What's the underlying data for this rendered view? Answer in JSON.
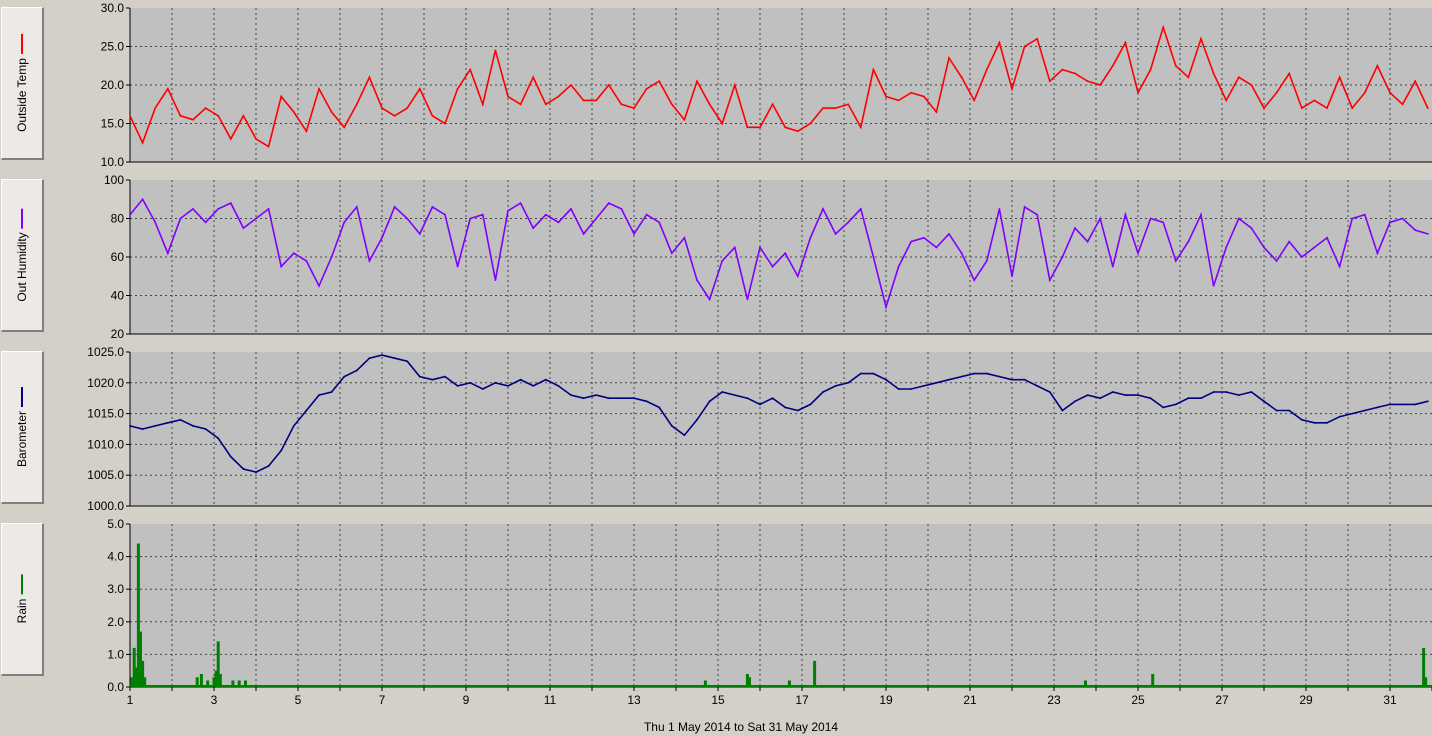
{
  "caption": "Thu 1 May 2014  to  Sat 31 May 2014",
  "x_ticks": [
    "1",
    "3",
    "5",
    "7",
    "9",
    "11",
    "13",
    "15",
    "17",
    "19",
    "21",
    "23",
    "25",
    "27",
    "29",
    "31"
  ],
  "panels": [
    {
      "label": "Outside Temp",
      "color": "#ff0000"
    },
    {
      "label": "Out Humidity",
      "color": "#8000ff"
    },
    {
      "label": "Barometer",
      "color": "#000080"
    },
    {
      "label": "Rain",
      "color": "#008000"
    }
  ],
  "chart_data": [
    {
      "type": "line",
      "ylabel": "Outside Temp",
      "ylim": [
        10,
        30
      ],
      "y_ticks": [
        "30.0",
        "25.0",
        "20.0",
        "15.0",
        "10.0"
      ],
      "color": "#ff0000",
      "x": [
        1.0,
        1.3,
        1.6,
        1.9,
        2.2,
        2.5,
        2.8,
        3.1,
        3.4,
        3.7,
        4.0,
        4.3,
        4.6,
        4.9,
        5.2,
        5.5,
        5.8,
        6.1,
        6.4,
        6.7,
        7.0,
        7.3,
        7.6,
        7.9,
        8.2,
        8.5,
        8.8,
        9.1,
        9.4,
        9.7,
        10.0,
        10.3,
        10.6,
        10.9,
        11.2,
        11.5,
        11.8,
        12.1,
        12.4,
        12.7,
        13.0,
        13.3,
        13.6,
        13.9,
        14.2,
        14.5,
        14.8,
        15.1,
        15.4,
        15.7,
        16.0,
        16.3,
        16.6,
        16.9,
        17.2,
        17.5,
        17.8,
        18.1,
        18.4,
        18.7,
        19.0,
        19.3,
        19.6,
        19.9,
        20.2,
        20.5,
        20.8,
        21.1,
        21.4,
        21.7,
        22.0,
        22.3,
        22.6,
        22.9,
        23.2,
        23.5,
        23.8,
        24.1,
        24.4,
        24.7,
        25.0,
        25.3,
        25.6,
        25.9,
        26.2,
        26.5,
        26.8,
        27.1,
        27.4,
        27.7,
        28.0,
        28.3,
        28.6,
        28.9,
        29.2,
        29.5,
        29.8,
        30.1,
        30.4,
        30.7,
        31.0,
        31.3,
        31.6,
        31.9
      ],
      "y": [
        16.0,
        12.5,
        17.0,
        19.5,
        16.0,
        15.5,
        17.0,
        16.0,
        13.0,
        16.0,
        13.0,
        12.0,
        18.5,
        16.5,
        14.0,
        19.5,
        16.5,
        14.5,
        17.5,
        21.0,
        17.0,
        16.0,
        17.0,
        19.5,
        16.0,
        15.0,
        19.5,
        22.0,
        17.5,
        24.5,
        18.5,
        17.5,
        21.0,
        17.5,
        18.5,
        20.0,
        18.0,
        18.0,
        20.0,
        17.5,
        17.0,
        19.5,
        20.5,
        17.5,
        15.5,
        20.5,
        17.5,
        15.0,
        20.0,
        14.5,
        14.5,
        17.5,
        14.5,
        14.0,
        15.0,
        17.0,
        17.0,
        17.5,
        14.5,
        22.0,
        18.5,
        18.0,
        19.0,
        18.5,
        16.5,
        23.5,
        21.0,
        18.0,
        22.0,
        25.5,
        19.5,
        25.0,
        26.0,
        20.5,
        22.0,
        21.5,
        20.5,
        20.0,
        22.5,
        25.5,
        19.0,
        22.0,
        27.5,
        22.5,
        21.0,
        26.0,
        21.5,
        18.0,
        21.0,
        20.0,
        17.0,
        19.0,
        21.5,
        17.0,
        18.0,
        17.0,
        21.0,
        17.0,
        19.0,
        22.5,
        19.0,
        17.5,
        20.5,
        17.0
      ]
    },
    {
      "type": "line",
      "ylabel": "Out Humidity",
      "ylim": [
        20,
        100
      ],
      "y_ticks": [
        "100",
        "80",
        "60",
        "40",
        "20"
      ],
      "color": "#8000ff",
      "x": [
        1.0,
        1.3,
        1.6,
        1.9,
        2.2,
        2.5,
        2.8,
        3.1,
        3.4,
        3.7,
        4.0,
        4.3,
        4.6,
        4.9,
        5.2,
        5.5,
        5.8,
        6.1,
        6.4,
        6.7,
        7.0,
        7.3,
        7.6,
        7.9,
        8.2,
        8.5,
        8.8,
        9.1,
        9.4,
        9.7,
        10.0,
        10.3,
        10.6,
        10.9,
        11.2,
        11.5,
        11.8,
        12.1,
        12.4,
        12.7,
        13.0,
        13.3,
        13.6,
        13.9,
        14.2,
        14.5,
        14.8,
        15.1,
        15.4,
        15.7,
        16.0,
        16.3,
        16.6,
        16.9,
        17.2,
        17.5,
        17.8,
        18.1,
        18.4,
        18.7,
        19.0,
        19.3,
        19.6,
        19.9,
        20.2,
        20.5,
        20.8,
        21.1,
        21.4,
        21.7,
        22.0,
        22.3,
        22.6,
        22.9,
        23.2,
        23.5,
        23.8,
        24.1,
        24.4,
        24.7,
        25.0,
        25.3,
        25.6,
        25.9,
        26.2,
        26.5,
        26.8,
        27.1,
        27.4,
        27.7,
        28.0,
        28.3,
        28.6,
        28.9,
        29.2,
        29.5,
        29.8,
        30.1,
        30.4,
        30.7,
        31.0,
        31.3,
        31.6,
        31.9
      ],
      "y": [
        82,
        90,
        78,
        62,
        80,
        85,
        78,
        85,
        88,
        75,
        80,
        85,
        55,
        62,
        58,
        45,
        60,
        78,
        86,
        58,
        70,
        86,
        80,
        72,
        86,
        82,
        55,
        80,
        82,
        48,
        84,
        88,
        75,
        82,
        78,
        85,
        72,
        80,
        88,
        85,
        72,
        82,
        78,
        62,
        70,
        48,
        38,
        58,
        65,
        38,
        65,
        55,
        62,
        50,
        70,
        85,
        72,
        78,
        85,
        60,
        34,
        55,
        68,
        70,
        65,
        72,
        62,
        48,
        58,
        85,
        50,
        86,
        82,
        48,
        60,
        75,
        68,
        80,
        55,
        82,
        62,
        80,
        78,
        58,
        68,
        82,
        45,
        65,
        80,
        75,
        65,
        58,
        68,
        60,
        65,
        70,
        55,
        80,
        82,
        62,
        78,
        80,
        74,
        72
      ]
    },
    {
      "type": "line",
      "ylabel": "Barometer",
      "ylim": [
        1000,
        1025
      ],
      "y_ticks": [
        "1025.0",
        "1020.0",
        "1015.0",
        "1010.0",
        "1005.0",
        "1000.0"
      ],
      "color": "#000080",
      "x": [
        1.0,
        1.3,
        1.6,
        1.9,
        2.2,
        2.5,
        2.8,
        3.1,
        3.4,
        3.7,
        4.0,
        4.3,
        4.6,
        4.9,
        5.2,
        5.5,
        5.8,
        6.1,
        6.4,
        6.7,
        7.0,
        7.3,
        7.6,
        7.9,
        8.2,
        8.5,
        8.8,
        9.1,
        9.4,
        9.7,
        10.0,
        10.3,
        10.6,
        10.9,
        11.2,
        11.5,
        11.8,
        12.1,
        12.4,
        12.7,
        13.0,
        13.3,
        13.6,
        13.9,
        14.2,
        14.5,
        14.8,
        15.1,
        15.4,
        15.7,
        16.0,
        16.3,
        16.6,
        16.9,
        17.2,
        17.5,
        17.8,
        18.1,
        18.4,
        18.7,
        19.0,
        19.3,
        19.6,
        19.9,
        20.2,
        20.5,
        20.8,
        21.1,
        21.4,
        21.7,
        22.0,
        22.3,
        22.6,
        22.9,
        23.2,
        23.5,
        23.8,
        24.1,
        24.4,
        24.7,
        25.0,
        25.3,
        25.6,
        25.9,
        26.2,
        26.5,
        26.8,
        27.1,
        27.4,
        27.7,
        28.0,
        28.3,
        28.6,
        28.9,
        29.2,
        29.5,
        29.8,
        30.1,
        30.4,
        30.7,
        31.0,
        31.3,
        31.6,
        31.9
      ],
      "y": [
        1013.0,
        1012.5,
        1013.0,
        1013.5,
        1014.0,
        1013.0,
        1012.5,
        1011.0,
        1008.0,
        1006.0,
        1005.5,
        1006.5,
        1009.0,
        1013.0,
        1015.5,
        1018.0,
        1018.5,
        1021.0,
        1022.0,
        1024.0,
        1024.5,
        1024.0,
        1023.5,
        1021.0,
        1020.5,
        1021.0,
        1019.5,
        1020.0,
        1019.0,
        1020.0,
        1019.5,
        1020.5,
        1019.5,
        1020.5,
        1019.5,
        1018.0,
        1017.5,
        1018.0,
        1017.5,
        1017.5,
        1017.5,
        1017.0,
        1016.0,
        1013.0,
        1011.5,
        1014.0,
        1017.0,
        1018.5,
        1018.0,
        1017.5,
        1016.5,
        1017.5,
        1016.0,
        1015.5,
        1016.5,
        1018.5,
        1019.5,
        1020.0,
        1021.5,
        1021.5,
        1020.5,
        1019.0,
        1019.0,
        1019.5,
        1020.0,
        1020.5,
        1021.0,
        1021.5,
        1021.5,
        1021.0,
        1020.5,
        1020.5,
        1019.5,
        1018.5,
        1015.5,
        1017.0,
        1018.0,
        1017.5,
        1018.5,
        1018.0,
        1018.0,
        1017.5,
        1016.0,
        1016.5,
        1017.5,
        1017.5,
        1018.5,
        1018.5,
        1018.0,
        1018.5,
        1017.0,
        1015.5,
        1015.5,
        1014.0,
        1013.5,
        1013.5,
        1014.5,
        1015.0,
        1015.5,
        1016.0,
        1016.5,
        1016.5,
        1016.5,
        1017.0
      ]
    },
    {
      "type": "bar",
      "ylabel": "Rain",
      "ylim": [
        0,
        5
      ],
      "y_ticks": [
        "5.0",
        "4.0",
        "3.0",
        "2.0",
        "1.0",
        "0.0"
      ],
      "color": "#008000",
      "x": [
        1.05,
        1.1,
        1.15,
        1.2,
        1.25,
        1.3,
        1.35,
        2.6,
        2.7,
        2.85,
        3.0,
        3.05,
        3.1,
        3.15,
        3.45,
        3.6,
        3.75,
        14.7,
        15.7,
        15.75,
        16.7,
        17.3,
        23.75,
        25.35,
        31.8,
        31.85
      ],
      "values": [
        0.3,
        1.2,
        0.6,
        4.4,
        1.7,
        0.8,
        0.3,
        0.3,
        0.4,
        0.2,
        0.3,
        0.5,
        1.4,
        0.4,
        0.2,
        0.2,
        0.2,
        0.2,
        0.4,
        0.3,
        0.2,
        0.8,
        0.2,
        0.4,
        1.2,
        0.3
      ]
    }
  ]
}
